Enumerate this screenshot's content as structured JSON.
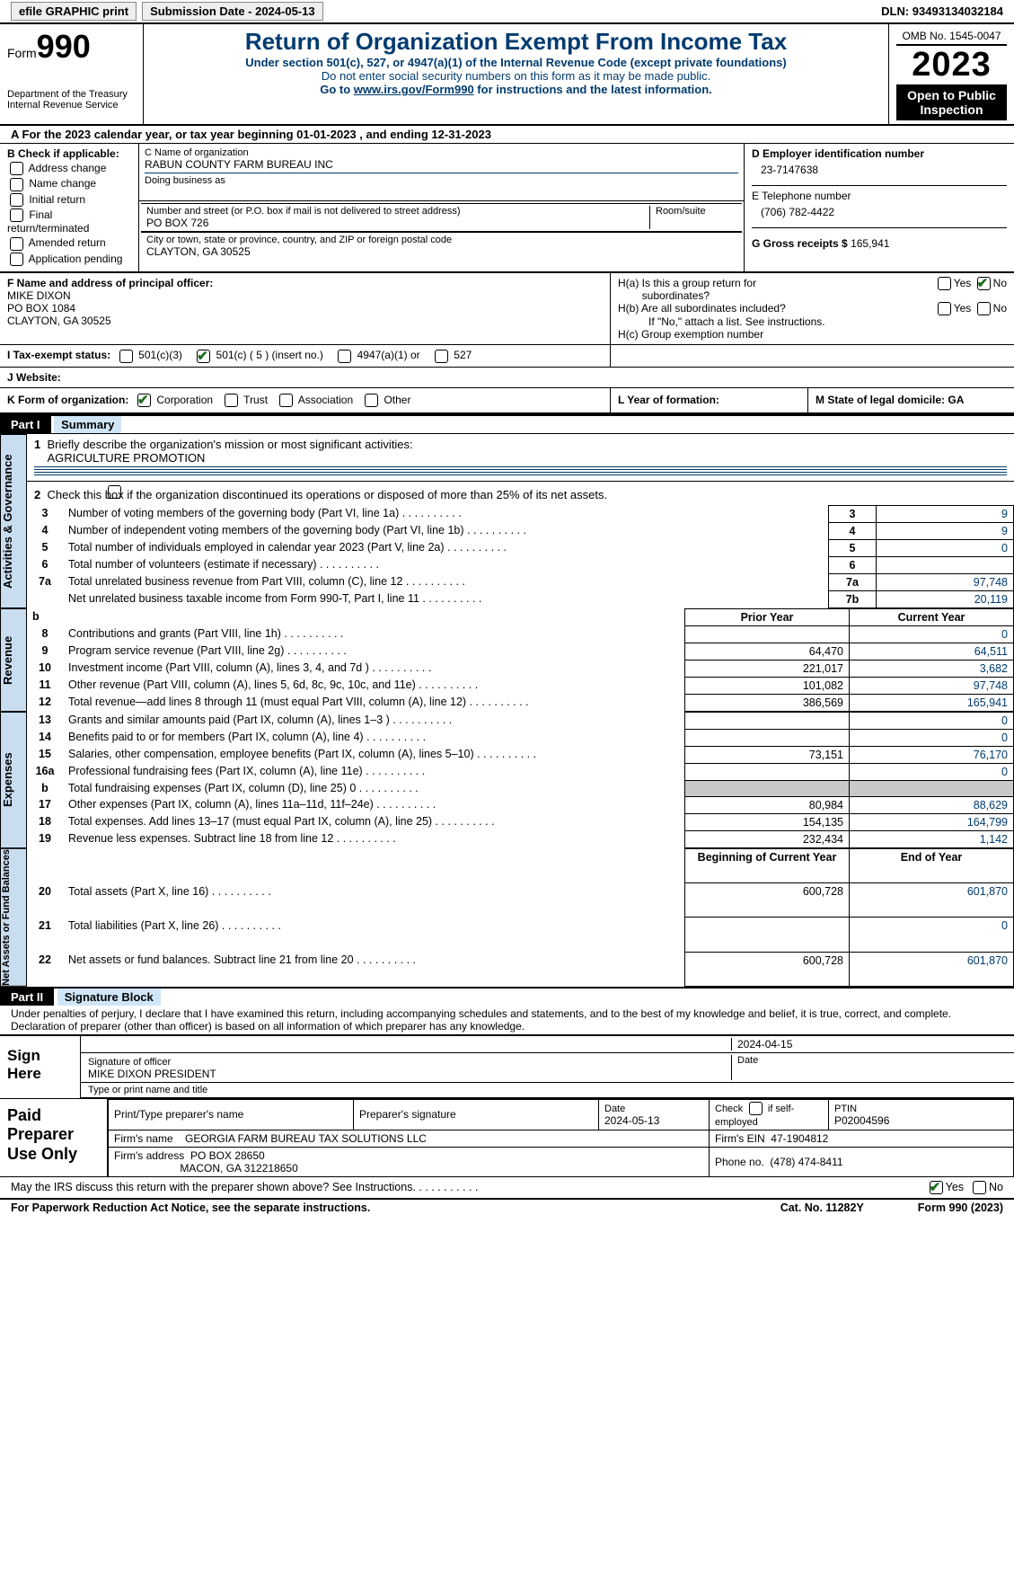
{
  "topbar": {
    "efile": "efile GRAPHIC print",
    "submission": "Submission Date - 2024-05-13",
    "dln": "DLN: 93493134032184"
  },
  "header": {
    "form_prefix": "Form",
    "form_number": "990",
    "dept": "Department of the Treasury",
    "irs": "Internal Revenue Service",
    "title": "Return of Organization Exempt From Income Tax",
    "sub1": "Under section 501(c), 527, or 4947(a)(1) of the Internal Revenue Code (except private foundations)",
    "sub2": "Do not enter social security numbers on this form as it may be made public.",
    "sub3_pre": "Go to ",
    "sub3_link": "www.irs.gov/Form990",
    "sub3_post": " for instructions and the latest information.",
    "omb": "OMB No. 1545-0047",
    "year": "2023",
    "open": "Open to Public Inspection"
  },
  "lineA": "For the 2023 calendar year, or tax year beginning 01-01-2023     , and ending 12-31-2023",
  "boxB": {
    "label": "B Check if applicable:",
    "items": [
      "Address change",
      "Name change",
      "Initial return",
      "Final return/terminated",
      "Amended return",
      "Application pending"
    ]
  },
  "boxC": {
    "label_name": "C Name of organization",
    "org": "RABUN COUNTY FARM BUREAU INC",
    "dba_label": "Doing business as",
    "addr_label": "Number and street (or P.O. box if mail is not delivered to street address)",
    "room_label": "Room/suite",
    "addr": "PO BOX 726",
    "city_label": "City or town, state or province, country, and ZIP or foreign postal code",
    "city": "CLAYTON, GA   30525"
  },
  "boxD": {
    "label": "D Employer identification number",
    "val": "23-7147638"
  },
  "boxE": {
    "label": "E Telephone number",
    "val": "(706) 782-4422"
  },
  "boxG": {
    "label": "G Gross receipts $",
    "val": "165,941"
  },
  "boxF": {
    "label": "F  Name and address of principal officer:",
    "name": "MIKE DIXON",
    "addr1": "PO BOX 1084",
    "addr2": "CLAYTON, GA   30525"
  },
  "boxH": {
    "ha": "H(a)  Is this a group return for",
    "ha2": "subordinates?",
    "hb": "H(b)  Are all subordinates included?",
    "hb_no": "If \"No,\" attach a list. See instructions.",
    "hc": "H(c)  Group exemption number",
    "yes": "Yes",
    "no": "No"
  },
  "boxI": {
    "label": "I    Tax-exempt status:",
    "opts": [
      "501(c)(3)",
      "501(c) ( 5 ) (insert no.)",
      "4947(a)(1) or",
      "527"
    ]
  },
  "boxJ": {
    "label": "J    Website:"
  },
  "boxK": {
    "label": "K Form of organization:",
    "opts": [
      "Corporation",
      "Trust",
      "Association",
      "Other"
    ]
  },
  "boxL": {
    "label": "L Year of formation:"
  },
  "boxM": {
    "label": "M State of legal domicile: GA"
  },
  "partI": {
    "strip": "Part I",
    "title": "Summary"
  },
  "summary": {
    "side1": "Activities & Governance",
    "line1_label": "Briefly describe the organization's mission or most significant activities:",
    "line1_val": "AGRICULTURE PROMOTION",
    "line2": "Check this box          if the organization discontinued its operations or disposed of more than 25% of its net assets.",
    "rows_gov": [
      {
        "n": "3",
        "t": "Number of voting members of the governing body (Part VI, line 1a)",
        "box": "3",
        "v": "9"
      },
      {
        "n": "4",
        "t": "Number of independent voting members of the governing body (Part VI, line 1b)",
        "box": "4",
        "v": "9"
      },
      {
        "n": "5",
        "t": "Total number of individuals employed in calendar year 2023 (Part V, line 2a)",
        "box": "5",
        "v": "0"
      },
      {
        "n": "6",
        "t": "Total number of volunteers (estimate if necessary)",
        "box": "6",
        "v": ""
      },
      {
        "n": "7a",
        "t": "Total unrelated business revenue from Part VIII, column (C), line 12",
        "box": "7a",
        "v": "97,748"
      },
      {
        "n": "",
        "t": "Net unrelated business taxable income from Form 990-T, Part I, line 11",
        "box": "7b",
        "v": "20,119"
      }
    ],
    "side2": "Revenue",
    "col_prior": "Prior Year",
    "col_curr": "Current Year",
    "rows_rev": [
      {
        "n": "8",
        "t": "Contributions and grants (Part VIII, line 1h)",
        "p": "",
        "c": "0"
      },
      {
        "n": "9",
        "t": "Program service revenue (Part VIII, line 2g)",
        "p": "64,470",
        "c": "64,511"
      },
      {
        "n": "10",
        "t": "Investment income (Part VIII, column (A), lines 3, 4, and 7d )",
        "p": "221,017",
        "c": "3,682"
      },
      {
        "n": "11",
        "t": "Other revenue (Part VIII, column (A), lines 5, 6d, 8c, 9c, 10c, and 11e)",
        "p": "101,082",
        "c": "97,748"
      },
      {
        "n": "12",
        "t": "Total revenue—add lines 8 through 11 (must equal Part VIII, column (A), line 12)",
        "p": "386,569",
        "c": "165,941"
      }
    ],
    "side3": "Expenses",
    "rows_exp": [
      {
        "n": "13",
        "t": "Grants and similar amounts paid (Part IX, column (A), lines 1–3 )",
        "p": "",
        "c": "0"
      },
      {
        "n": "14",
        "t": "Benefits paid to or for members (Part IX, column (A), line 4)",
        "p": "",
        "c": "0"
      },
      {
        "n": "15",
        "t": "Salaries, other compensation, employee benefits (Part IX, column (A), lines 5–10)",
        "p": "73,151",
        "c": "76,170"
      },
      {
        "n": "16a",
        "t": "Professional fundraising fees (Part IX, column (A), line 11e)",
        "p": "",
        "c": "0"
      },
      {
        "n": "b",
        "t": "Total fundraising expenses (Part IX, column (D), line 25) 0",
        "p": "shade",
        "c": "shade"
      },
      {
        "n": "17",
        "t": "Other expenses (Part IX, column (A), lines 11a–11d, 11f–24e)",
        "p": "80,984",
        "c": "88,629"
      },
      {
        "n": "18",
        "t": "Total expenses. Add lines 13–17 (must equal Part IX, column (A), line 25)",
        "p": "154,135",
        "c": "164,799"
      },
      {
        "n": "19",
        "t": "Revenue less expenses. Subtract line 18 from line 12",
        "p": "232,434",
        "c": "1,142"
      }
    ],
    "side4": "Net Assets or Fund Balances",
    "col_begin": "Beginning of Current Year",
    "col_end": "End of Year",
    "rows_net": [
      {
        "n": "20",
        "t": "Total assets (Part X, line 16)",
        "p": "600,728",
        "c": "601,870"
      },
      {
        "n": "21",
        "t": "Total liabilities (Part X, line 26)",
        "p": "",
        "c": "0"
      },
      {
        "n": "22",
        "t": "Net assets or fund balances. Subtract line 21 from line 20",
        "p": "600,728",
        "c": "601,870"
      }
    ]
  },
  "partII": {
    "strip": "Part II",
    "title": "Signature Block"
  },
  "declare": "Under penalties of perjury, I declare that I have examined this return, including accompanying schedules and statements, and to the best of my knowledge and belief, it is true, correct, and complete. Declaration of preparer (other than officer) is based on all information of which preparer has any knowledge.",
  "sign": {
    "label": "Sign Here",
    "date": "2024-04-15",
    "sig_officer": "Signature of officer",
    "officer": "MIKE DIXON  PRESIDENT",
    "type_print": "Type or print name and title",
    "date_lbl": "Date"
  },
  "paid": {
    "label": "Paid Preparer Use Only",
    "col1": "Print/Type preparer's name",
    "col2": "Preparer's signature",
    "col3_lbl": "Date",
    "col3": "2024-05-13",
    "col4_lbl": "Check",
    "col4_txt": "if self-employed",
    "col5_lbl": "PTIN",
    "col5": "P02004596",
    "firm_name_lbl": "Firm's name",
    "firm_name": "GEORGIA FARM BUREAU TAX SOLUTIONS LLC",
    "firm_ein_lbl": "Firm's EIN",
    "firm_ein": "47-1904812",
    "firm_addr_lbl": "Firm's address",
    "firm_addr1": "PO BOX 28650",
    "firm_addr2": "MACON, GA   312218650",
    "phone_lbl": "Phone no.",
    "phone": "(478) 474-8411"
  },
  "discuss": {
    "q": "May the IRS discuss this return with the preparer shown above? See Instructions.",
    "yes": "Yes",
    "no": "No"
  },
  "footer": {
    "left": "For Paperwork Reduction Act Notice, see the separate instructions.",
    "mid": "Cat. No. 11282Y",
    "right_pre": "Form ",
    "right_b": "990",
    "right_post": " (2023)"
  }
}
